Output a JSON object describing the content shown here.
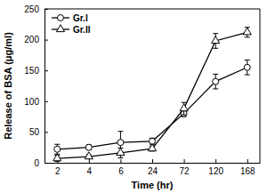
{
  "chart_data": {
    "type": "line",
    "x_label": "Time (hr)",
    "y_label": "Release of BSA (μg/ml)",
    "categories": [
      "2",
      "4",
      "6",
      "24",
      "72",
      "120",
      "168"
    ],
    "series": [
      {
        "name": "Gr.I",
        "color": "#000000",
        "marker": "circle",
        "line_style": "solid",
        "values": [
          22,
          25,
          33,
          35,
          80,
          132,
          155
        ],
        "errors": [
          8,
          4,
          18,
          5,
          5,
          12,
          12
        ]
      },
      {
        "name": "Gr.II",
        "color": "#000000",
        "marker": "triangle",
        "line_style": "solid",
        "values": [
          7,
          10,
          16,
          23,
          88,
          198,
          212
        ],
        "errors": [
          5,
          3,
          8,
          4,
          10,
          12,
          8
        ]
      }
    ],
    "ylim": [
      0,
      250
    ],
    "yticks": [
      0,
      50,
      100,
      150,
      200,
      250
    ],
    "legend": "upper left",
    "grid": false
  }
}
